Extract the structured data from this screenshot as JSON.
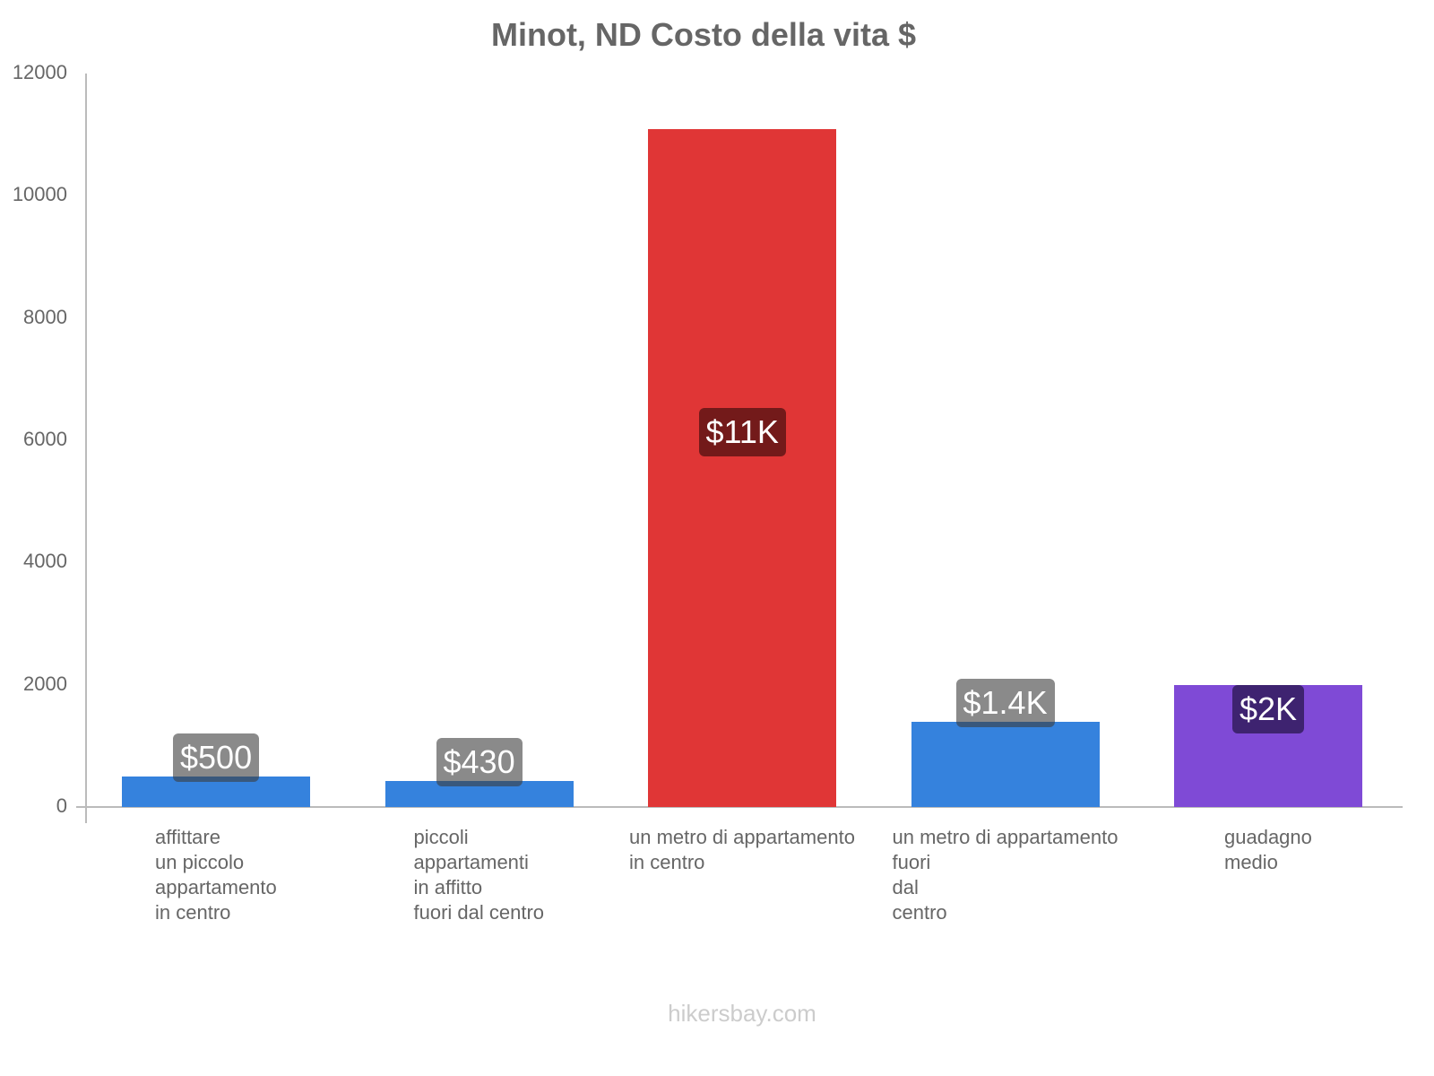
{
  "chart_data": {
    "type": "bar",
    "title": "Minot, ND Costo della vita $",
    "xlabel": "",
    "ylabel": "",
    "ylim": [
      0,
      12000
    ],
    "yticks": [
      "0",
      "2000",
      "4000",
      "6000",
      "8000",
      "10000",
      "12000"
    ],
    "categories": [
      "affittare\nun piccolo\nappartamento\nin centro",
      "piccoli\nappartamenti\nin affitto\nfuori dal centro",
      "un metro di appartamento\nin centro",
      "un metro di appartamento\nfuori\ndal\ncentro",
      "guadagno\nmedio"
    ],
    "values": [
      500,
      430,
      11090,
      1390,
      1995
    ],
    "labels": [
      "$500",
      "$430",
      "$11K",
      "$1.4K",
      "$2K"
    ],
    "colors": [
      "#3582dd",
      "#3582dd",
      "#e03636",
      "#3582dd",
      "#7f4ad6"
    ],
    "grid": false,
    "legend": "none"
  },
  "footer": "hikersbay.com"
}
